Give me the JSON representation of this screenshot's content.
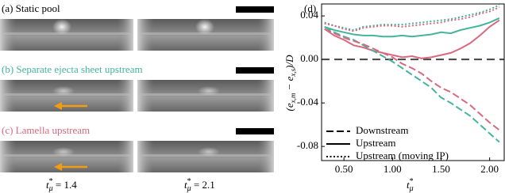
{
  "panels": [
    {
      "caption": "(a) Static pool",
      "color": "#000000"
    },
    {
      "caption": "(b) Separate ejecta sheet upstream",
      "color": "#45b39d"
    },
    {
      "caption": "(c) Lamella upstream",
      "color": "#d8697e"
    }
  ],
  "time_labels": [
    [
      "t",
      "*",
      "μ",
      " = 1.4"
    ],
    [
      "t",
      "*",
      "μ",
      " = 2.1"
    ]
  ],
  "chart_data": {
    "type": "line",
    "panel_label": "(d)",
    "x_label": [
      "t",
      "*",
      "μ"
    ],
    "y_label": [
      "(e",
      "x,m",
      " − e",
      "x,s",
      ")/D"
    ],
    "x": [
      0.3,
      0.4,
      0.5,
      0.6,
      0.7,
      0.8,
      0.9,
      1.0,
      1.1,
      1.2,
      1.3,
      1.4,
      1.5,
      1.6,
      1.7,
      1.8,
      1.9,
      2.0,
      2.1
    ],
    "xlim": [
      0.27,
      2.15
    ],
    "xticks": [
      {
        "value": 0.5,
        "label": "0.50"
      },
      {
        "value": 1.0,
        "label": "1.00"
      },
      {
        "value": 1.5,
        "label": "1.50"
      },
      {
        "value": 2.0,
        "label": "2.00"
      }
    ],
    "ylim": [
      -0.093,
      0.051
    ],
    "yticks": [
      -0.08,
      -0.04,
      {
        "value": 0,
        "label": "0.00"
      },
      0.04
    ],
    "hline": 0,
    "legend": [
      {
        "name": "Downstream",
        "dash": "dashed"
      },
      {
        "name": "Upstream",
        "dash": "solid"
      },
      {
        "name": "Upstream (moving IP)",
        "dash": "dotted"
      }
    ],
    "series": [
      {
        "color": "#45b39d",
        "dash": "dotted",
        "values": [
          0.034,
          0.031,
          0.029,
          0.027,
          0.03,
          0.031,
          0.032,
          0.032,
          0.032,
          0.033,
          0.034,
          0.035,
          0.036,
          0.037,
          0.039,
          0.041,
          0.043,
          0.046,
          0.05
        ]
      },
      {
        "color": "#d8697e",
        "dash": "dotted",
        "values": [
          0.033,
          0.031,
          0.028,
          0.026,
          0.029,
          0.03,
          0.031,
          0.031,
          0.03,
          0.031,
          0.032,
          0.033,
          0.034,
          0.036,
          0.037,
          0.039,
          0.042,
          0.044,
          0.048
        ]
      },
      {
        "color": "#45b39d",
        "dash": "solid",
        "values": [
          0.03,
          0.027,
          0.025,
          0.023,
          0.022,
          0.022,
          0.021,
          0.021,
          0.022,
          0.021,
          0.022,
          0.023,
          0.025,
          0.024,
          0.027,
          0.029,
          0.031,
          0.034,
          0.038
        ]
      },
      {
        "color": "#d8697e",
        "dash": "solid",
        "values": [
          0.028,
          0.022,
          0.018,
          0.013,
          0.011,
          0.008,
          0.006,
          0.004,
          0.002,
          0.003,
          0.001,
          0.002,
          0.004,
          0.006,
          0.01,
          0.015,
          0.022,
          0.03,
          0.036
        ]
      },
      {
        "color": "#45b39d",
        "dash": "dashed",
        "values": [
          0.03,
          0.025,
          0.021,
          0.018,
          0.013,
          0.008,
          0.003,
          -0.002,
          -0.008,
          -0.014,
          -0.02,
          -0.026,
          -0.035,
          -0.04,
          -0.046,
          -0.052,
          -0.06,
          -0.068,
          -0.076
        ]
      },
      {
        "color": "#d8697e",
        "dash": "dashed",
        "values": [
          0.028,
          0.024,
          0.02,
          0.017,
          0.014,
          0.01,
          0.006,
          0.002,
          -0.004,
          -0.008,
          -0.013,
          -0.02,
          -0.026,
          -0.03,
          -0.036,
          -0.042,
          -0.05,
          -0.058,
          -0.065
        ]
      }
    ]
  }
}
